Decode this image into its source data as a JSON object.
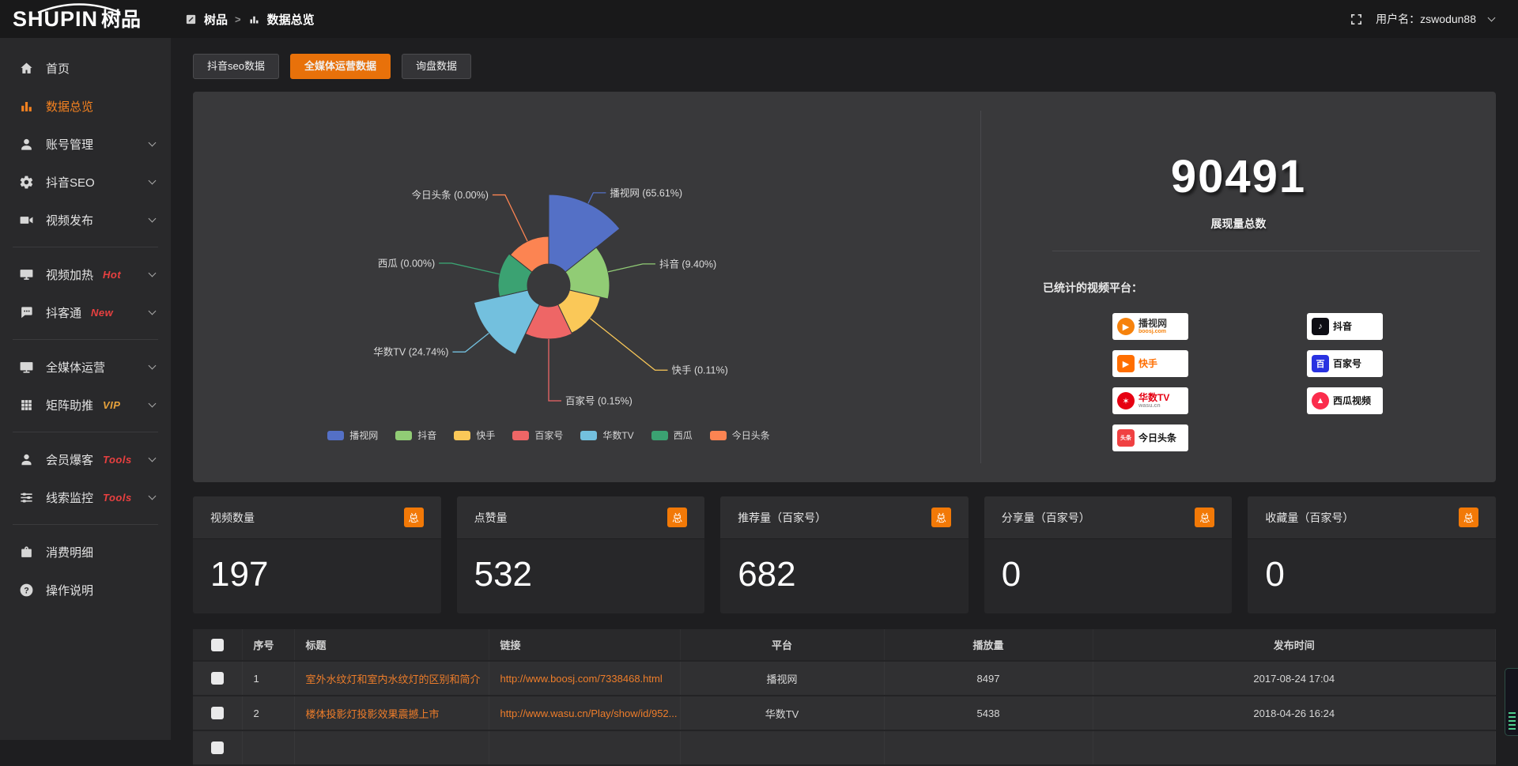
{
  "colors": {
    "accent_orange": "#e8710a",
    "link_orange": "#ee7d2a",
    "badge_orange": "#f27907",
    "sidebar_active_orange": "#f58220",
    "hot_red": "#e84040",
    "vip_yellow": "#e6a23c"
  },
  "header": {
    "logo_main": "SHUPIN",
    "logo_cn": "树品",
    "breadcrumb": [
      {
        "label": "树品"
      },
      {
        "label": "数据总览"
      }
    ],
    "separator": ">",
    "username_label": "用户名：zswodun88"
  },
  "sidebar": {
    "items": [
      {
        "key": "home",
        "label": "首页",
        "icon": "home"
      },
      {
        "key": "data-overview",
        "label": "数据总览",
        "icon": "chart",
        "active": true
      },
      {
        "key": "account-manage",
        "label": "账号管理",
        "icon": "user",
        "chevron": true
      },
      {
        "key": "douyin-seo",
        "label": "抖音SEO",
        "icon": "gear",
        "chevron": true
      },
      {
        "key": "video-publish",
        "label": "视频发布",
        "icon": "video",
        "chevron": true
      },
      {
        "divider": true
      },
      {
        "key": "video-heat",
        "label": "视频加热",
        "icon": "heat",
        "badge": "Hot",
        "badge_color": "#e84040",
        "chevron": true
      },
      {
        "key": "douketong",
        "label": "抖客通",
        "icon": "chat",
        "badge": "New",
        "badge_color": "#e84040",
        "chevron": true
      },
      {
        "divider": true
      },
      {
        "key": "omni-media",
        "label": "全媒体运营",
        "icon": "screen",
        "chevron": true
      },
      {
        "key": "matrix-boost",
        "label": "矩阵助推",
        "icon": "grid",
        "badge": "VIP",
        "badge_color": "#e6a23c",
        "chevron": true
      },
      {
        "divider": true
      },
      {
        "key": "member-baoke",
        "label": "会员爆客",
        "icon": "person",
        "badge": "Tools",
        "badge_color": "#e84040",
        "chevron": true
      },
      {
        "key": "clue-monitor",
        "label": "线索监控",
        "icon": "sliders",
        "badge": "Tools",
        "badge_color": "#e84040",
        "chevron": true
      },
      {
        "divider": true
      },
      {
        "key": "consume-detail",
        "label": "消费明细",
        "icon": "bag"
      },
      {
        "key": "operation-help",
        "label": "操作说明",
        "icon": "question"
      }
    ]
  },
  "tabs": [
    {
      "key": "douyin-seo-data",
      "label": "抖音seo数据"
    },
    {
      "key": "omni-media-data",
      "label": "全媒体运营数据",
      "active": true
    },
    {
      "key": "inquiry-data",
      "label": "询盘数据"
    }
  ],
  "chart_data": {
    "type": "pie",
    "variant": "nightingale_rose",
    "equal_angle_slices": true,
    "start_angle_deg": 0,
    "inner_radius": 27,
    "label_format": "{name} ({percent}%)",
    "legend_position": "bottom",
    "series": [
      {
        "name": "播视网",
        "percent": "65.61",
        "color": "#5470c6",
        "radius": 115,
        "leader": 15
      },
      {
        "name": "抖音",
        "percent": "9.40",
        "color": "#91cc75",
        "radius": 77,
        "leader": 45
      },
      {
        "name": "快手",
        "percent": "0.11",
        "color": "#fac858",
        "radius": 67,
        "leader": 105
      },
      {
        "name": "百家号",
        "percent": "0.15",
        "color": "#ee6666",
        "radius": 68,
        "leader": 78
      },
      {
        "name": "华数TV",
        "percent": "24.74",
        "color": "#73c0de",
        "radius": 97,
        "leader": 38
      },
      {
        "name": "西瓜",
        "percent": "0.00",
        "color": "#3ba272",
        "radius": 64,
        "leader": 62
      },
      {
        "name": "今日头条",
        "percent": "0.00",
        "color": "#fc8452",
        "radius": 62,
        "leader": 65
      }
    ],
    "legend": [
      "播视网",
      "抖音",
      "快手",
      "百家号",
      "华数TV",
      "西瓜",
      "今日头条"
    ]
  },
  "summary": {
    "total_value": "90491",
    "total_label": "展现量总数",
    "platforms_label": "已统计的视频平台：",
    "platform_columns": [
      [
        {
          "name": "播视网",
          "sub": "boosj.com",
          "name_color": "#3a3a3a",
          "sub_color": "#f6820c",
          "logo_shape": "circle",
          "logo_bg": "#f6820c",
          "logo_glyph": "▶"
        },
        {
          "name": "快手",
          "sub": "",
          "name_color": "#ff6e00",
          "sub_color": "",
          "logo_shape": "square",
          "logo_bg": "#ff6e00",
          "logo_glyph": "▶"
        },
        {
          "name": "华数TV",
          "sub": "wasu.cn",
          "name_color": "#e60012",
          "sub_color": "#9a9a9a",
          "logo_shape": "circle",
          "logo_bg": "#e60012",
          "logo_glyph": "✶"
        },
        {
          "name": "今日头条",
          "sub": "",
          "name_color": "#141414",
          "sub_color": "",
          "logo_shape": "square",
          "logo_bg": "#f04142",
          "logo_glyph": "头条"
        }
      ],
      [
        {
          "name": "抖音",
          "sub": "",
          "name_color": "#141414",
          "sub_color": "",
          "logo_shape": "square",
          "logo_bg": "#0d0d14",
          "logo_glyph": "♪"
        },
        {
          "name": "百家号",
          "sub": "",
          "name_color": "#141414",
          "sub_color": "",
          "logo_shape": "square",
          "logo_bg": "#2932e1",
          "logo_glyph": "百"
        },
        {
          "name": "西瓜视频",
          "sub": "",
          "name_color": "#141414",
          "sub_color": "",
          "logo_shape": "circle",
          "logo_bg": "#fb2c4c",
          "logo_glyph": "▲"
        }
      ]
    ]
  },
  "stat_cards": [
    {
      "title": "视频数量",
      "badge": "总",
      "value": "197"
    },
    {
      "title": "点赞量",
      "badge": "总",
      "value": "532"
    },
    {
      "title": "推荐量（百家号）",
      "badge": "总",
      "value": "682"
    },
    {
      "title": "分享量（百家号）",
      "badge": "总",
      "value": "0"
    },
    {
      "title": "收藏量（百家号）",
      "badge": "总",
      "value": "0"
    }
  ],
  "table": {
    "has_checkbox": true,
    "columns": [
      "序号",
      "标题",
      "链接",
      "平台",
      "播放量",
      "发布时间"
    ],
    "rows": [
      {
        "index": "1",
        "title": "室外水纹灯和室内水纹灯的区别和简介",
        "link": "http://www.boosj.com/7338468.html",
        "platform": "播视网",
        "plays": "8497",
        "published": "2017-08-24 17:04"
      },
      {
        "index": "2",
        "title": "楼体投影灯投影效果震撼上市",
        "link": "http://www.wasu.cn/Play/show/id/952...",
        "platform": "华数TV",
        "plays": "5438",
        "published": "2018-04-26 16:24"
      }
    ],
    "partial_row": true
  }
}
